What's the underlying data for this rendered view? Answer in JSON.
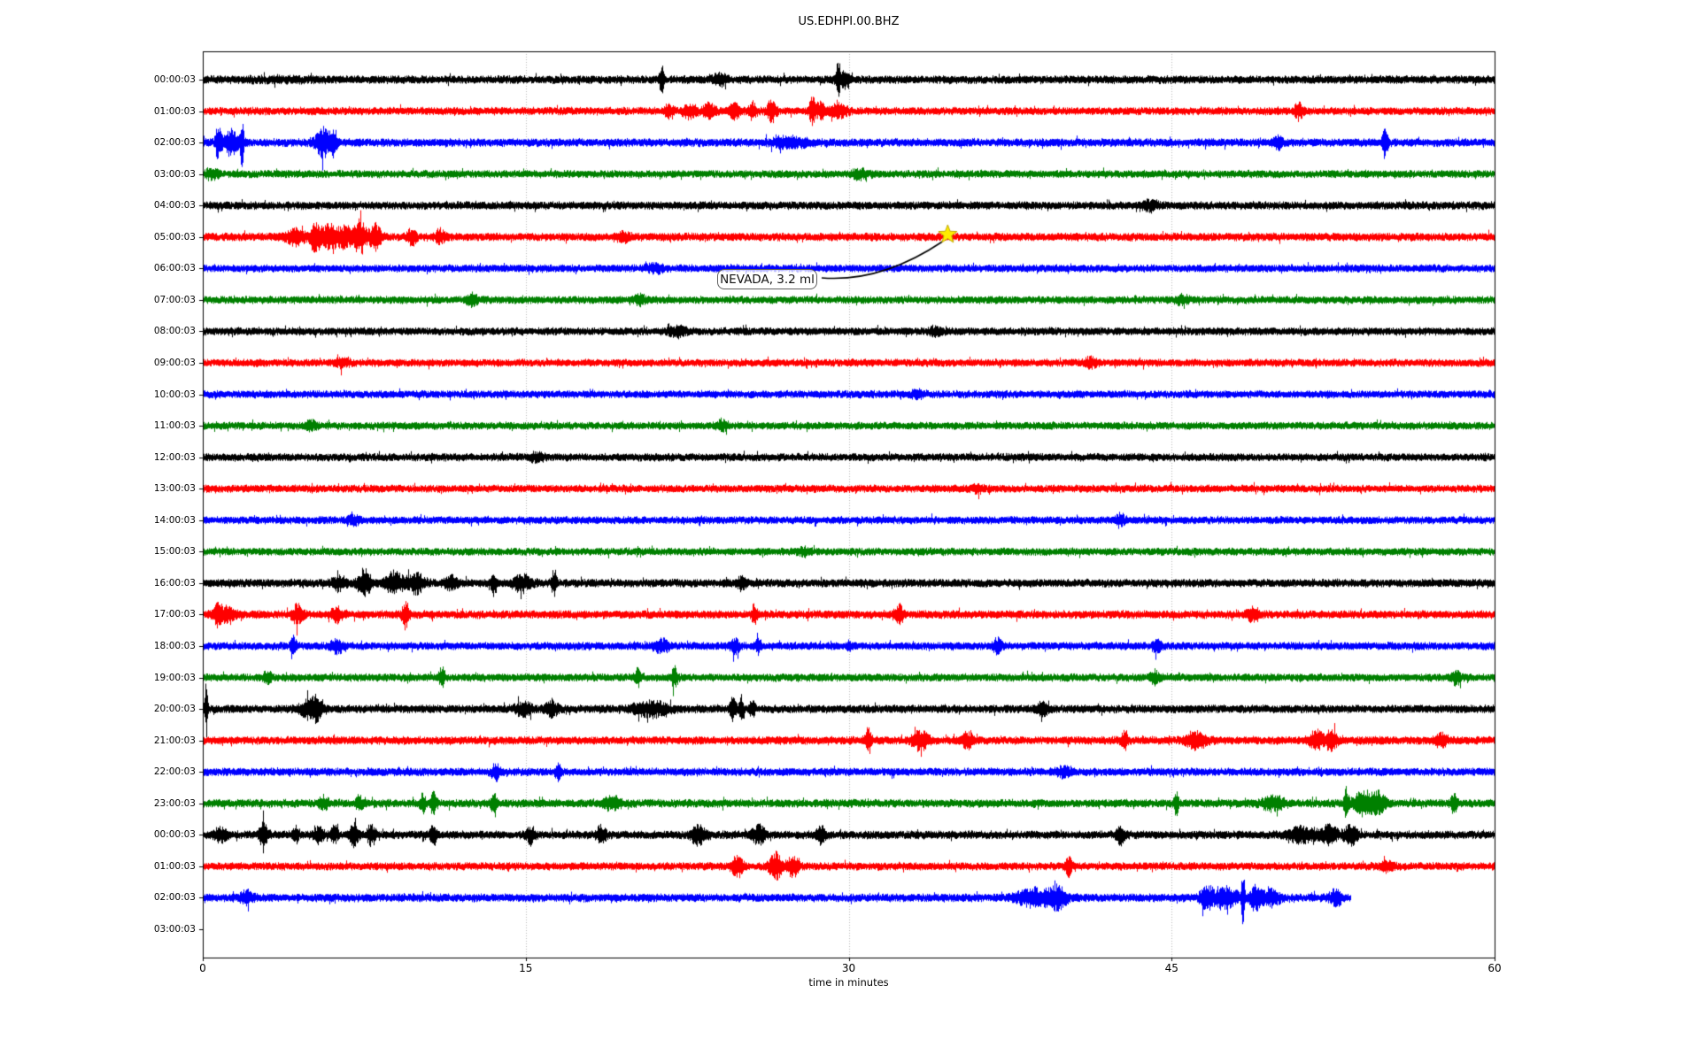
{
  "figure": {
    "title": "US.EDHPI.00.BHZ"
  },
  "chart_data": {
    "type": "line",
    "subtype": "helicorder-dayplot-seismogram",
    "station": "US.EDHPI.00.BHZ",
    "title": "US.EDHPI.00.BHZ",
    "xlabel": "time in minutes",
    "x_ticks": [
      "0",
      "15",
      "30",
      "45",
      "60"
    ],
    "x_tick_minutes": [
      0,
      15,
      30,
      45,
      60
    ],
    "x_range": [
      0,
      60
    ],
    "grid_minutes": [
      15,
      30,
      45
    ],
    "grid_color": "#b0b0b0",
    "trace_colors_cycle": [
      "#000000",
      "#ff0000",
      "#0000ff",
      "#008000"
    ],
    "annotation": {
      "label": "NEVADA, 3.2 ml",
      "star_minute": 34.6,
      "star_row_label": "05:00:03",
      "star_fill": "#ffed00",
      "star_edge": "#bfa600",
      "arrow_color": "#000000"
    },
    "rows": [
      {
        "label": "00:00:03",
        "color": "#000000",
        "base_amp": 4.6,
        "end_minute": 60,
        "events": [
          [
            3.5,
            1.5,
            0.25
          ],
          [
            21.3,
            0.1,
            3.0
          ],
          [
            24.0,
            0.3,
            1.2
          ],
          [
            29.5,
            0.1,
            3.8
          ],
          [
            29.8,
            0.25,
            1.4
          ]
        ]
      },
      {
        "label": "01:00:03",
        "color": "#ff0000",
        "base_amp": 4.4,
        "end_minute": 60,
        "events": [
          [
            21.6,
            0.2,
            1.5
          ],
          [
            22.6,
            0.3,
            1.5
          ],
          [
            23.5,
            0.3,
            1.6
          ],
          [
            24.7,
            0.25,
            1.7
          ],
          [
            25.5,
            0.2,
            1.9
          ],
          [
            26.4,
            0.2,
            2.5
          ],
          [
            28.3,
            0.15,
            3.1
          ],
          [
            28.7,
            0.15,
            2.5
          ],
          [
            29.5,
            0.4,
            1.4
          ],
          [
            50.9,
            0.2,
            1.8
          ]
        ]
      },
      {
        "label": "02:00:03",
        "color": "#0000ff",
        "base_amp": 4.6,
        "end_minute": 60,
        "events": [
          [
            0.7,
            0.12,
            3.8
          ],
          [
            1.3,
            0.4,
            2.6
          ],
          [
            1.8,
            0.09,
            5.2
          ],
          [
            5.6,
            0.35,
            3.2
          ],
          [
            6.1,
            0.15,
            2.6
          ],
          [
            27.2,
            0.8,
            1.1
          ],
          [
            49.9,
            0.2,
            1.3
          ],
          [
            54.9,
            0.12,
            3.4
          ]
        ]
      },
      {
        "label": "03:00:03",
        "color": "#008000",
        "base_amp": 4.3,
        "end_minute": 60,
        "events": [
          [
            0.4,
            0.3,
            1.2
          ],
          [
            30.5,
            0.4,
            0.9
          ]
        ]
      },
      {
        "label": "04:00:03",
        "color": "#000000",
        "base_amp": 4.5,
        "end_minute": 60,
        "events": [
          [
            44.0,
            0.4,
            0.8
          ]
        ]
      },
      {
        "label": "05:00:03",
        "color": "#ff0000",
        "base_amp": 4.6,
        "end_minute": 60,
        "events": [
          [
            4.3,
            0.4,
            1.8
          ],
          [
            5.2,
            0.25,
            3.2
          ],
          [
            5.9,
            0.4,
            2.8
          ],
          [
            6.6,
            0.3,
            2.2
          ],
          [
            7.3,
            0.3,
            3.8
          ],
          [
            8.0,
            0.25,
            2.8
          ],
          [
            9.7,
            0.2,
            1.8
          ],
          [
            11.0,
            0.2,
            1.5
          ],
          [
            19.5,
            0.3,
            1.0
          ]
        ]
      },
      {
        "label": "06:00:03",
        "color": "#0000ff",
        "base_amp": 4.3,
        "end_minute": 60,
        "events": [
          [
            21.0,
            0.4,
            0.9
          ]
        ]
      },
      {
        "label": "07:00:03",
        "color": "#008000",
        "base_amp": 4.3,
        "end_minute": 60,
        "events": [
          [
            12.5,
            0.3,
            1.1
          ],
          [
            20.3,
            0.25,
            1.1
          ],
          [
            45.5,
            0.3,
            0.9
          ]
        ]
      },
      {
        "label": "08:00:03",
        "color": "#000000",
        "base_amp": 4.4,
        "end_minute": 60,
        "events": [
          [
            22.0,
            0.4,
            1.0
          ],
          [
            34.0,
            0.3,
            0.8
          ]
        ]
      },
      {
        "label": "09:00:03",
        "color": "#ff0000",
        "base_amp": 4.3,
        "end_minute": 60,
        "events": [
          [
            6.5,
            0.3,
            1.1
          ],
          [
            41.2,
            0.3,
            1.0
          ]
        ]
      },
      {
        "label": "10:00:03",
        "color": "#0000ff",
        "base_amp": 4.3,
        "end_minute": 60,
        "events": [
          [
            33.2,
            0.3,
            0.9
          ]
        ]
      },
      {
        "label": "11:00:03",
        "color": "#008000",
        "base_amp": 4.3,
        "end_minute": 60,
        "events": [
          [
            5.0,
            0.3,
            0.9
          ],
          [
            24.1,
            0.25,
            1.2
          ]
        ]
      },
      {
        "label": "12:00:03",
        "color": "#000000",
        "base_amp": 4.4,
        "end_minute": 60,
        "events": [
          [
            15.5,
            0.3,
            0.8
          ]
        ]
      },
      {
        "label": "13:00:03",
        "color": "#ff0000",
        "base_amp": 4.3,
        "end_minute": 60,
        "events": [
          [
            36.0,
            0.3,
            0.8
          ]
        ]
      },
      {
        "label": "14:00:03",
        "color": "#0000ff",
        "base_amp": 4.3,
        "end_minute": 60,
        "events": [
          [
            7.0,
            0.3,
            0.8
          ],
          [
            42.6,
            0.2,
            1.4
          ]
        ]
      },
      {
        "label": "15:00:03",
        "color": "#008000",
        "base_amp": 4.3,
        "end_minute": 60,
        "events": [
          [
            28.0,
            0.3,
            0.8
          ]
        ]
      },
      {
        "label": "16:00:03",
        "color": "#000000",
        "base_amp": 4.6,
        "end_minute": 60,
        "events": [
          [
            6.3,
            0.3,
            1.6
          ],
          [
            7.5,
            0.3,
            3.0
          ],
          [
            8.9,
            0.4,
            2.4
          ],
          [
            9.9,
            0.4,
            2.1
          ],
          [
            11.5,
            0.3,
            1.4
          ],
          [
            13.5,
            0.12,
            2.6
          ],
          [
            14.8,
            0.4,
            1.8
          ],
          [
            16.3,
            0.12,
            2.8
          ],
          [
            25.0,
            0.2,
            1.4
          ]
        ]
      },
      {
        "label": "17:00:03",
        "color": "#ff0000",
        "base_amp": 4.6,
        "end_minute": 60,
        "events": [
          [
            0.7,
            0.2,
            2.4
          ],
          [
            1.2,
            0.3,
            1.6
          ],
          [
            4.4,
            0.25,
            2.2
          ],
          [
            6.2,
            0.25,
            1.5
          ],
          [
            9.4,
            0.15,
            3.2
          ],
          [
            25.6,
            0.12,
            2.4
          ],
          [
            32.3,
            0.2,
            2.3
          ],
          [
            48.8,
            0.3,
            1.3
          ]
        ]
      },
      {
        "label": "18:00:03",
        "color": "#0000ff",
        "base_amp": 4.4,
        "end_minute": 60,
        "events": [
          [
            4.2,
            0.12,
            2.2
          ],
          [
            6.2,
            0.3,
            1.5
          ],
          [
            21.3,
            0.4,
            1.3
          ],
          [
            24.7,
            0.2,
            1.6
          ],
          [
            25.8,
            0.12,
            1.7
          ],
          [
            30.0,
            0.1,
            1.5
          ],
          [
            36.9,
            0.2,
            1.6
          ],
          [
            44.3,
            0.2,
            1.4
          ]
        ]
      },
      {
        "label": "19:00:03",
        "color": "#008000",
        "base_amp": 4.4,
        "end_minute": 60,
        "events": [
          [
            3.0,
            0.2,
            1.2
          ],
          [
            11.1,
            0.13,
            2.5
          ],
          [
            20.2,
            0.12,
            2.1
          ],
          [
            21.9,
            0.15,
            2.3
          ],
          [
            44.2,
            0.2,
            1.4
          ],
          [
            58.2,
            0.2,
            1.6
          ]
        ]
      },
      {
        "label": "20:00:03",
        "color": "#000000",
        "base_amp": 4.6,
        "end_minute": 60,
        "events": [
          [
            0.15,
            0.07,
            6.5
          ],
          [
            4.9,
            0.4,
            2.0
          ],
          [
            5.3,
            0.2,
            2.4
          ],
          [
            14.9,
            0.4,
            1.4
          ],
          [
            16.2,
            0.3,
            1.5
          ],
          [
            20.8,
            0.8,
            1.5
          ],
          [
            24.6,
            0.15,
            2.4
          ],
          [
            25.0,
            0.09,
            3.3
          ],
          [
            25.5,
            0.12,
            2.1
          ],
          [
            39.0,
            0.3,
            1.2
          ]
        ]
      },
      {
        "label": "21:00:03",
        "color": "#ff0000",
        "base_amp": 4.6,
        "end_minute": 60,
        "events": [
          [
            30.9,
            0.15,
            2.9
          ],
          [
            33.3,
            0.4,
            1.9
          ],
          [
            35.5,
            0.3,
            1.5
          ],
          [
            42.8,
            0.15,
            2.5
          ],
          [
            46.1,
            0.5,
            1.7
          ],
          [
            51.7,
            0.3,
            2.1
          ],
          [
            52.4,
            0.25,
            2.5
          ],
          [
            57.5,
            0.3,
            1.3
          ]
        ]
      },
      {
        "label": "22:00:03",
        "color": "#0000ff",
        "base_amp": 4.5,
        "end_minute": 60,
        "events": [
          [
            13.6,
            0.2,
            1.7
          ],
          [
            16.5,
            0.13,
            2.1
          ],
          [
            40.0,
            0.4,
            0.9
          ]
        ]
      },
      {
        "label": "23:00:03",
        "color": "#008000",
        "base_amp": 4.6,
        "end_minute": 60,
        "events": [
          [
            5.6,
            0.2,
            1.3
          ],
          [
            7.3,
            0.2,
            1.4
          ],
          [
            10.2,
            0.12,
            2.2
          ],
          [
            10.7,
            0.15,
            2.4
          ],
          [
            13.5,
            0.15,
            2.0
          ],
          [
            19.0,
            0.4,
            1.3
          ],
          [
            45.2,
            0.1,
            2.5
          ],
          [
            49.7,
            0.5,
            1.4
          ],
          [
            53.1,
            0.1,
            3.3
          ],
          [
            53.9,
            0.5,
            2.5
          ],
          [
            54.6,
            0.3,
            2.1
          ],
          [
            58.1,
            0.15,
            2.3
          ]
        ]
      },
      {
        "label": "00:00:03",
        "color": "#000000",
        "base_amp": 4.6,
        "end_minute": 60,
        "events": [
          [
            0.8,
            0.3,
            1.4
          ],
          [
            2.8,
            0.2,
            2.7
          ],
          [
            4.3,
            0.15,
            1.9
          ],
          [
            5.4,
            0.2,
            2.1
          ],
          [
            6.1,
            0.15,
            1.9
          ],
          [
            7.0,
            0.2,
            2.3
          ],
          [
            7.8,
            0.2,
            2.3
          ],
          [
            10.7,
            0.15,
            2.2
          ],
          [
            15.2,
            0.2,
            1.7
          ],
          [
            18.5,
            0.2,
            2.1
          ],
          [
            23.0,
            0.3,
            2.3
          ],
          [
            25.8,
            0.3,
            1.9
          ],
          [
            28.7,
            0.2,
            1.7
          ],
          [
            42.6,
            0.2,
            1.9
          ],
          [
            51.0,
            0.6,
            1.6
          ],
          [
            52.3,
            0.4,
            1.9
          ],
          [
            53.3,
            0.3,
            2.0
          ]
        ]
      },
      {
        "label": "01:00:03",
        "color": "#ff0000",
        "base_amp": 4.4,
        "end_minute": 60,
        "events": [
          [
            24.8,
            0.25,
            2.6
          ],
          [
            26.6,
            0.3,
            3.0
          ],
          [
            27.4,
            0.25,
            2.6
          ],
          [
            40.2,
            0.15,
            2.0
          ],
          [
            55.0,
            0.3,
            1.0
          ]
        ]
      },
      {
        "label": "02:00:03",
        "color": "#0000ff",
        "base_amp": 4.6,
        "end_minute": 53.3,
        "events": [
          [
            2.0,
            0.3,
            1.3
          ],
          [
            38.6,
            0.8,
            1.8
          ],
          [
            39.7,
            0.4,
            2.4
          ],
          [
            46.6,
            0.3,
            2.3
          ],
          [
            47.5,
            0.6,
            2.1
          ],
          [
            48.3,
            0.07,
            7.5
          ],
          [
            48.9,
            0.25,
            2.8
          ],
          [
            49.6,
            0.4,
            1.9
          ],
          [
            52.6,
            0.3,
            1.5
          ]
        ]
      },
      {
        "label": "03:00:03",
        "color": "#000000",
        "base_amp": 0,
        "end_minute": 0,
        "events": []
      }
    ]
  }
}
